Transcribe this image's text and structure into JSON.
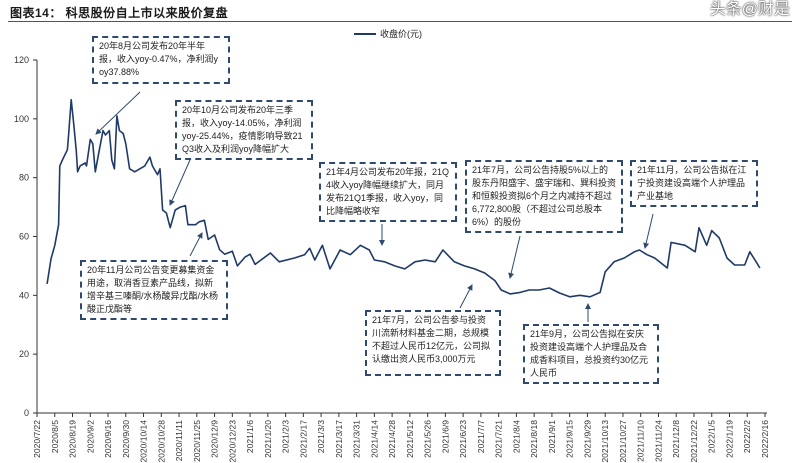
{
  "title": "图表14：  科思股份自上市以来股价复盘",
  "watermark": "头条@财是",
  "chart_data": {
    "type": "line",
    "title": "科思股份自上市以来股价复盘",
    "xlabel": "",
    "ylabel": "",
    "ylim": [
      0,
      120
    ],
    "yticks": [
      0,
      20,
      40,
      60,
      80,
      100,
      120
    ],
    "x_unit": "days since 2020/7/22",
    "x_tick_step_days": 14,
    "xtick_labels": [
      "2020/7/22",
      "2020/8/5",
      "2020/8/19",
      "2020/9/2",
      "2020/9/16",
      "2020/9/30",
      "2020/10/14",
      "2020/10/28",
      "2020/11/11",
      "2020/11/25",
      "2020/12/9",
      "2020/12/23",
      "2021/1/6",
      "2021/1/20",
      "2021/2/3",
      "2021/2/17",
      "2021/3/3",
      "2021/3/17",
      "2021/3/31",
      "2021/4/14",
      "2021/4/28",
      "2021/5/12",
      "2021/5/26",
      "2021/6/9",
      "2021/6/23",
      "2021/7/7",
      "2021/7/21",
      "2021/8/4",
      "2021/8/18",
      "2021/9/1",
      "2021/9/15",
      "2021/9/29",
      "2021/10/13",
      "2021/10/27",
      "2021/11/10",
      "2021/11/24",
      "2021/12/8",
      "2021/12/22",
      "2022/1/5",
      "2022/1/19",
      "2022/2/2",
      "2022/2/16"
    ],
    "grid": false,
    "legend_position": "top-center",
    "series": [
      {
        "name": "收盘价(元)",
        "color": "#1f3a66",
        "points": [
          [
            8,
            43.9
          ],
          [
            11,
            52.4
          ],
          [
            14,
            57
          ],
          [
            17,
            64
          ],
          [
            18,
            84
          ],
          [
            20,
            86
          ],
          [
            24,
            89.5
          ],
          [
            25,
            95
          ],
          [
            27,
            106.5
          ],
          [
            29,
            98
          ],
          [
            31,
            89
          ],
          [
            32,
            82
          ],
          [
            34,
            84
          ],
          [
            38,
            85
          ],
          [
            39,
            84
          ],
          [
            42,
            93
          ],
          [
            44,
            91.5
          ],
          [
            46,
            82
          ],
          [
            49,
            89
          ],
          [
            52,
            96
          ],
          [
            54,
            94.5
          ],
          [
            57,
            96
          ],
          [
            59,
            86
          ],
          [
            61,
            83
          ],
          [
            63,
            101
          ],
          [
            65,
            96
          ],
          [
            68,
            95
          ],
          [
            70,
            91.5
          ],
          [
            73,
            83
          ],
          [
            77,
            82
          ],
          [
            85,
            84
          ],
          [
            89,
            87
          ],
          [
            91,
            84
          ],
          [
            95,
            81
          ],
          [
            97,
            83
          ],
          [
            99,
            69
          ],
          [
            102,
            68
          ],
          [
            105,
            63
          ],
          [
            109,
            69
          ],
          [
            113,
            70
          ],
          [
            117,
            70.5
          ],
          [
            119,
            64
          ],
          [
            125,
            64
          ],
          [
            128,
            65
          ],
          [
            132,
            65.5
          ],
          [
            135,
            59
          ],
          [
            140,
            60.5
          ],
          [
            144,
            55.5
          ],
          [
            148,
            54
          ],
          [
            154,
            55
          ],
          [
            158,
            50
          ],
          [
            164,
            53
          ],
          [
            168,
            54
          ],
          [
            172,
            50.5
          ],
          [
            184,
            54.4
          ],
          [
            191,
            51.4
          ],
          [
            203,
            52.7
          ],
          [
            211,
            53.8
          ],
          [
            215,
            56
          ],
          [
            219,
            52
          ],
          [
            225,
            57
          ],
          [
            231,
            49
          ],
          [
            239,
            55.4
          ],
          [
            247,
            53.8
          ],
          [
            255,
            57
          ],
          [
            262,
            55.4
          ],
          [
            266,
            52
          ],
          [
            274,
            51.4
          ],
          [
            282,
            50
          ],
          [
            290,
            49
          ],
          [
            298,
            51.4
          ],
          [
            306,
            52
          ],
          [
            314,
            51.4
          ],
          [
            320,
            55.4
          ],
          [
            329,
            51.4
          ],
          [
            337,
            50
          ],
          [
            345,
            49
          ],
          [
            353,
            47.6
          ],
          [
            361,
            45
          ],
          [
            366,
            41.8
          ],
          [
            373,
            40.5
          ],
          [
            381,
            41
          ],
          [
            388,
            41.8
          ],
          [
            396,
            41.8
          ],
          [
            404,
            42.5
          ],
          [
            412,
            40.8
          ],
          [
            420,
            39.5
          ],
          [
            428,
            40
          ],
          [
            436,
            39.5
          ],
          [
            444,
            41
          ],
          [
            448,
            48
          ],
          [
            455,
            51.4
          ],
          [
            463,
            52.7
          ],
          [
            471,
            54.8
          ],
          [
            475,
            55.4
          ],
          [
            481,
            53.8
          ],
          [
            487,
            52.7
          ],
          [
            497,
            49.3
          ],
          [
            500,
            58
          ],
          [
            511,
            57
          ],
          [
            519,
            54.8
          ],
          [
            522,
            63
          ],
          [
            528,
            57
          ],
          [
            532,
            62
          ],
          [
            538,
            59.5
          ],
          [
            544,
            52.7
          ],
          [
            550,
            50.3
          ],
          [
            558,
            50.3
          ],
          [
            562,
            54.8
          ],
          [
            567,
            51.4
          ],
          [
            570,
            49.3
          ]
        ]
      }
    ],
    "annotations": [
      {
        "text": "20年8月公司发布20年半年报，收入yoy-0.47%，净利润yoy37.88%"
      },
      {
        "text": "20年10月公司发布20年三季报，收入yoy-14.05%，净利润yoy-25.44%，疫情影响导致21Q3收入及利润yoy降幅扩大"
      },
      {
        "text": "21年4月公司发布20年报，21Q4收入yoy降幅继续扩大，同月发布21Q1季报，收入yoy，同比降幅略收窄"
      },
      {
        "text": "21年7月，公司公告持股5%以上的股东丹阳盛宇、盛宇瑞和、巽科投资和恒毅投资拟6个月之内减持不超过6,772,800股（不超过公司总股本6%）的股份"
      },
      {
        "text": "21年11月，公司公告拟在江宁投资建设高端个人护理品产业基地"
      },
      {
        "text": "20年11月公司公告变更募集资金用途，取消香豆素产品线，拟新增辛基三嗪酮/水杨酸异戊酯/水杨酸正戊酯等"
      },
      {
        "text": "21年7月，公司公告参与投资川流新材料基金二期，总规模不超过人民币12亿元，公司拟认缴出资人民币3,000万元"
      },
      {
        "text": "21年9月，公司公告拟在安庆投资建设高端个人护理品及合成香料项目，总投资约30亿元人民币"
      }
    ]
  }
}
